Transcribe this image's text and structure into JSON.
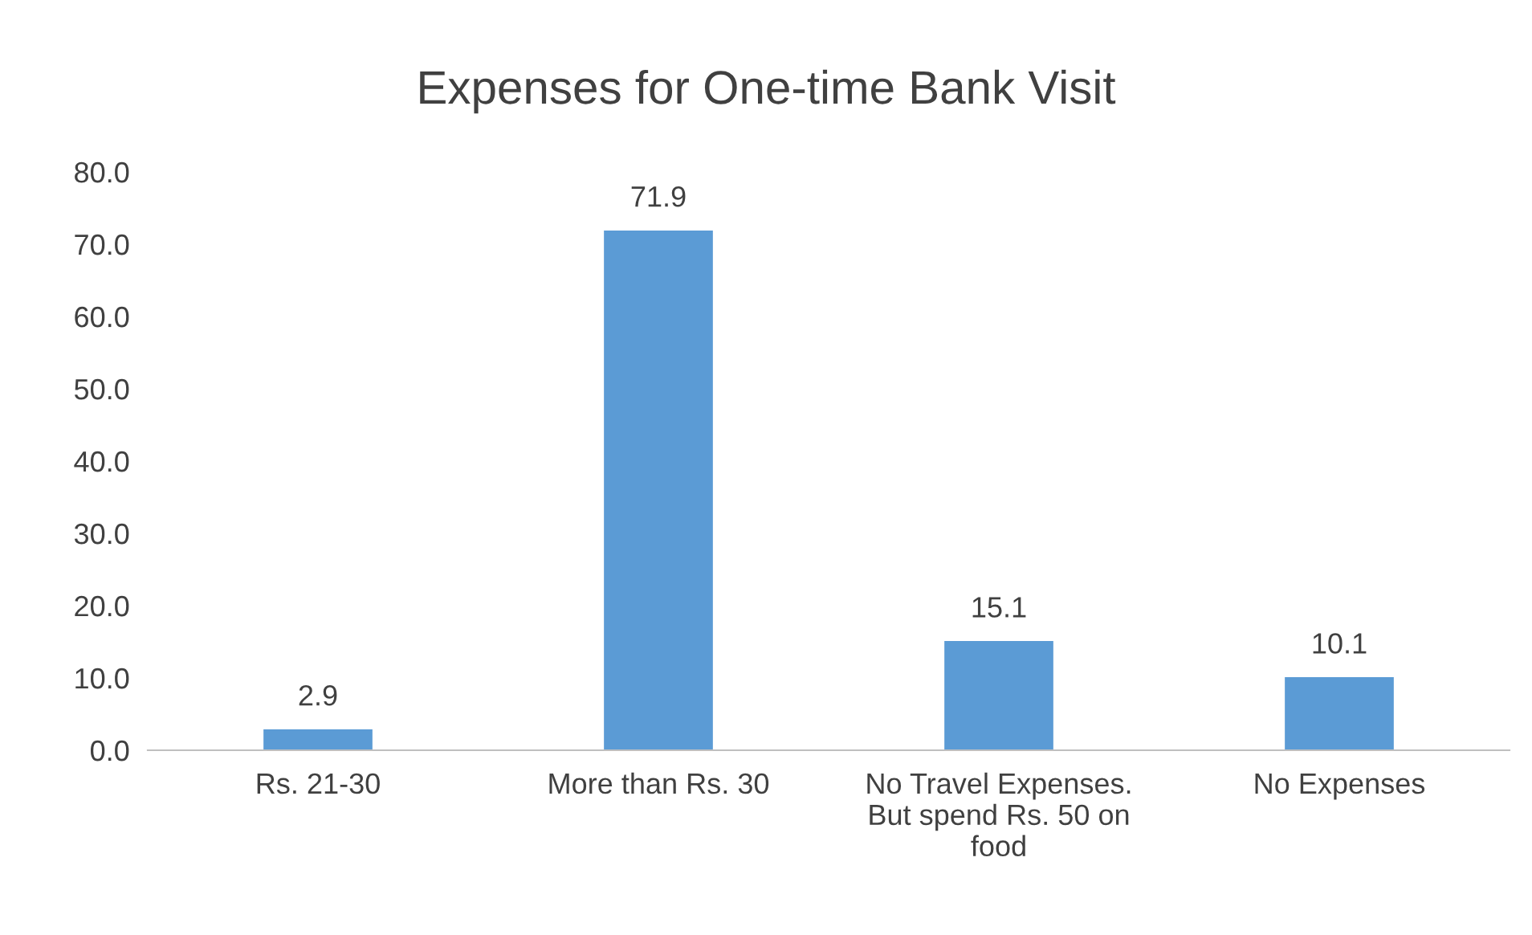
{
  "chart_data": {
    "type": "bar",
    "title": "Expenses for One-time Bank Visit",
    "categories": [
      "Rs. 21-30",
      "More than Rs. 30",
      "No Travel Expenses.\nBut spend Rs. 50 on\nfood",
      "No Expenses"
    ],
    "values": [
      2.9,
      71.9,
      15.1,
      10.1
    ],
    "color": "#5b9bd5",
    "ylim": [
      0,
      80
    ],
    "yticks": [
      {
        "value": 0,
        "label": "0.0"
      },
      {
        "value": 10,
        "label": "10.0"
      },
      {
        "value": 20,
        "label": "20.0"
      },
      {
        "value": 30,
        "label": "30.0"
      },
      {
        "value": 40,
        "label": "40.0"
      },
      {
        "value": 50,
        "label": "50.0"
      },
      {
        "value": 60,
        "label": "60.0"
      },
      {
        "value": 70,
        "label": "70.0"
      },
      {
        "value": 80,
        "label": "80.0"
      }
    ],
    "data_labels": true,
    "grid": false,
    "legend": false
  }
}
